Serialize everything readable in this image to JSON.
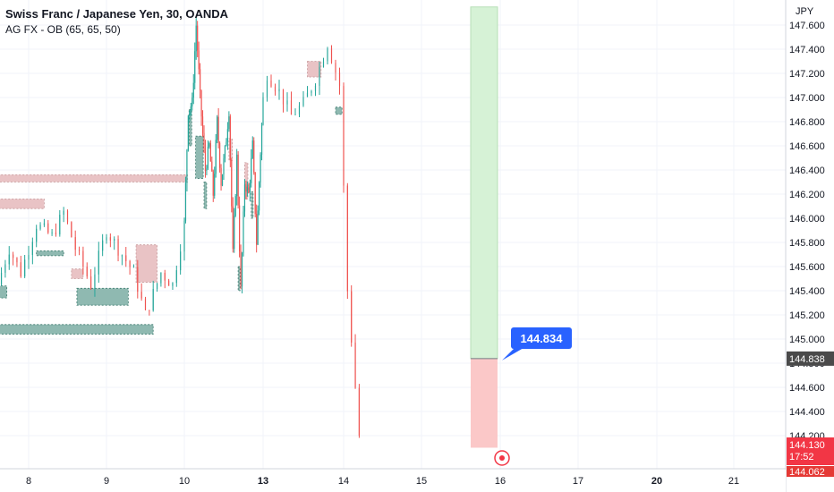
{
  "header": {
    "title": "Swiss Franc / Japanese Yen, 30, OANDA",
    "indicator": "AG FX - OB (65, 65, 50)"
  },
  "colors": {
    "up": "#26a69a",
    "down": "#ef5350",
    "bull_block_fill": "#8fb9b1",
    "bear_block_fill": "#e9c3c5",
    "target_zone": "#d6f2d6",
    "stop_zone": "#fbc8c8",
    "callout": "#2962ff",
    "price_tag": "#4a4a4a",
    "current_tag": "#f23645"
  },
  "chart_data": {
    "type": "candlestick",
    "currency": "JPY",
    "ylim": [
      144.0,
      147.75
    ],
    "yticks": [
      144.2,
      144.4,
      144.6,
      144.8,
      145.0,
      145.2,
      145.4,
      145.6,
      145.8,
      146.0,
      146.2,
      146.4,
      146.6,
      146.8,
      147.0,
      147.2,
      147.4,
      147.6
    ],
    "ytick_labels": [
      "144.200",
      "144.400",
      "144.600",
      "144.800",
      "145.000",
      "145.200",
      "145.400",
      "145.600",
      "145.800",
      "146.000",
      "146.200",
      "146.400",
      "146.600",
      "146.800",
      "147.000",
      "147.200",
      "147.400",
      "147.600"
    ],
    "xticks": [
      {
        "label": "8",
        "day": 8,
        "bold": false
      },
      {
        "label": "9",
        "day": 9,
        "bold": false
      },
      {
        "label": "10",
        "day": 10,
        "bold": false
      },
      {
        "label": "13",
        "day": 13,
        "bold": true
      },
      {
        "label": "14",
        "day": 14,
        "bold": false
      },
      {
        "label": "15",
        "day": 15,
        "bold": false
      },
      {
        "label": "16",
        "day": 16,
        "bold": false
      },
      {
        "label": "17",
        "day": 17,
        "bold": false
      },
      {
        "label": "20",
        "day": 20,
        "bold": true
      },
      {
        "label": "21",
        "day": 21,
        "bold": false
      }
    ],
    "price_path": [
      [
        7.6,
        145.45
      ],
      [
        7.75,
        145.75
      ],
      [
        7.9,
        145.55
      ],
      [
        8.1,
        145.95
      ],
      [
        8.3,
        145.85
      ],
      [
        8.45,
        146.05
      ],
      [
        8.6,
        145.75
      ],
      [
        8.8,
        145.45
      ],
      [
        9.0,
        145.9
      ],
      [
        9.2,
        145.7
      ],
      [
        9.35,
        145.55
      ],
      [
        9.5,
        145.2
      ],
      [
        9.7,
        145.55
      ],
      [
        9.85,
        145.45
      ],
      [
        10.0,
        145.95
      ],
      [
        10.15,
        146.9
      ],
      [
        10.3,
        146.95
      ],
      [
        10.45,
        147.6
      ],
      [
        10.6,
        147.0
      ],
      [
        10.8,
        146.4
      ],
      [
        10.95,
        146.6
      ],
      [
        11.1,
        146.2
      ],
      [
        11.25,
        146.8
      ],
      [
        11.4,
        146.3
      ],
      [
        11.55,
        146.55
      ],
      [
        11.7,
        146.9
      ],
      [
        11.85,
        145.7
      ],
      [
        12.0,
        146.5
      ],
      [
        12.15,
        145.4
      ],
      [
        12.3,
        146.3
      ],
      [
        12.45,
        146.2
      ],
      [
        12.6,
        146.6
      ],
      [
        12.75,
        145.8
      ],
      [
        12.9,
        146.55
      ],
      [
        13.05,
        147.2
      ],
      [
        13.2,
        147.05
      ],
      [
        13.35,
        146.85
      ],
      [
        13.5,
        146.95
      ],
      [
        13.65,
        147.15
      ],
      [
        13.8,
        147.45
      ],
      [
        13.95,
        147.1
      ],
      [
        14.05,
        145.4
      ],
      [
        14.2,
        144.2
      ]
    ],
    "order_blocks": [
      {
        "kind": "bear",
        "x0": 7.6,
        "x1": 10.12,
        "y0": 146.3,
        "y1": 146.36
      },
      {
        "kind": "bear",
        "x0": 7.6,
        "x1": 8.2,
        "y0": 146.08,
        "y1": 146.16
      },
      {
        "kind": "bull",
        "x0": 7.6,
        "x1": 9.6,
        "y0": 145.04,
        "y1": 145.12
      },
      {
        "kind": "bull",
        "x0": 8.1,
        "x1": 8.45,
        "y0": 145.69,
        "y1": 145.73
      },
      {
        "kind": "bull",
        "x0": 7.6,
        "x1": 7.72,
        "y0": 145.34,
        "y1": 145.44
      },
      {
        "kind": "bull",
        "x0": 8.62,
        "x1": 9.28,
        "y0": 145.28,
        "y1": 145.42
      },
      {
        "kind": "bear",
        "x0": 8.55,
        "x1": 8.7,
        "y0": 145.5,
        "y1": 145.58
      },
      {
        "kind": "bear",
        "x0": 9.38,
        "x1": 9.65,
        "y0": 145.47,
        "y1": 145.78
      },
      {
        "kind": "bull",
        "x0": 10.18,
        "x1": 10.28,
        "y0": 146.6,
        "y1": 146.9
      },
      {
        "kind": "bull",
        "x0": 10.43,
        "x1": 10.72,
        "y0": 146.33,
        "y1": 146.68
      },
      {
        "kind": "bull",
        "x0": 10.75,
        "x1": 10.85,
        "y0": 146.08,
        "y1": 146.3
      },
      {
        "kind": "bear",
        "x0": 11.7,
        "x1": 11.83,
        "y0": 146.48,
        "y1": 146.66
      },
      {
        "kind": "bear",
        "x0": 12.3,
        "x1": 12.42,
        "y0": 146.16,
        "y1": 146.46
      },
      {
        "kind": "bull",
        "x0": 12.55,
        "x1": 12.62,
        "y0": 146.0,
        "y1": 146.22
      },
      {
        "kind": "bull",
        "x0": 12.05,
        "x1": 12.12,
        "y0": 145.4,
        "y1": 145.6
      },
      {
        "kind": "bear",
        "x0": 13.55,
        "x1": 13.72,
        "y0": 147.17,
        "y1": 147.3
      },
      {
        "kind": "bull",
        "x0": 13.9,
        "x1": 13.98,
        "y0": 146.86,
        "y1": 146.92
      }
    ],
    "position": {
      "x0": 15.45,
      "x1": 15.75,
      "entry": 144.838,
      "target": 147.75,
      "stop": 144.1
    },
    "callout_value": "144.834",
    "price_label": "144.838",
    "current_price": "144.130",
    "countdown": "17:52",
    "low_label": "144.062"
  }
}
